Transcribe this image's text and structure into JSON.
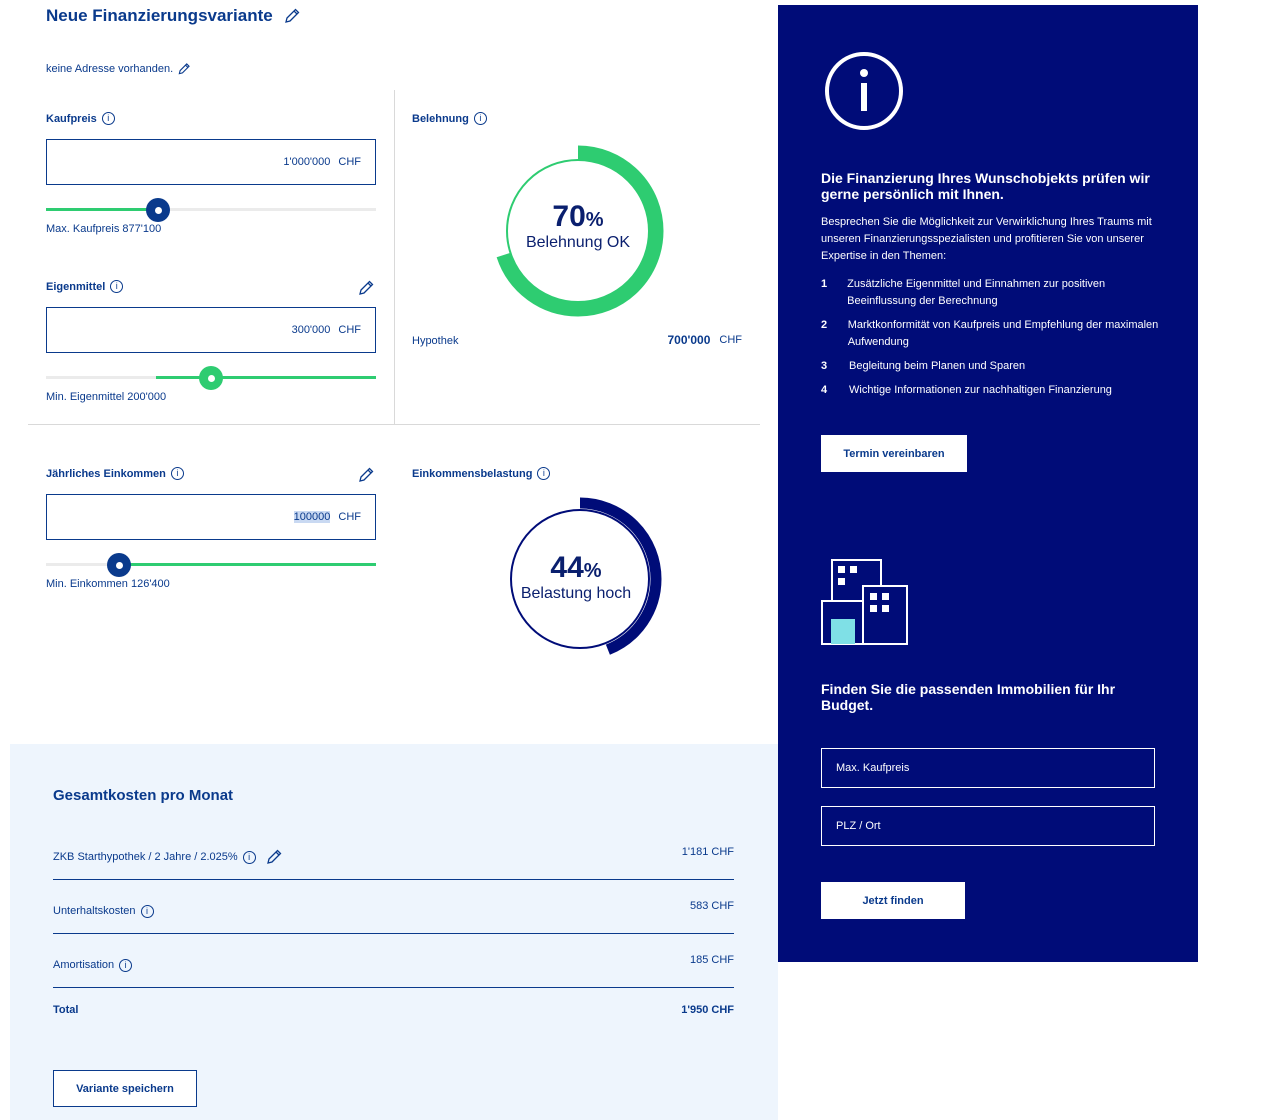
{
  "header": {
    "title": "Neue Finanzierungsvariante",
    "address": "keine Adresse vorhanden."
  },
  "kaufpreis": {
    "label": "Kaufpreis",
    "value": "1'000'000",
    "currency": "CHF",
    "hint": "Max. Kaufpreis 877'100",
    "slider_fraction": 0.34
  },
  "eigenmittel": {
    "label": "Eigenmittel",
    "value": "300'000",
    "currency": "CHF",
    "hint": "Min. Eigenmittel 200'000",
    "slider_fraction": 0.5
  },
  "einkommen": {
    "label": "Jährliches Einkommen",
    "value": "100000",
    "currency": "CHF",
    "hint": "Min. Einkommen 126'400",
    "slider_fraction": 0.22
  },
  "belehnung": {
    "label": "Belehnung",
    "percent": "70",
    "percent_sign": "%",
    "status": "Belehnung OK",
    "fraction": 0.7,
    "color": "#2ecc71",
    "hypothek_label": "Hypothek",
    "hypothek_value": "700'000",
    "hypothek_currency": "CHF"
  },
  "belastung": {
    "label": "Einkommensbelastung",
    "percent": "44",
    "percent_sign": "%",
    "status": "Belastung hoch",
    "fraction": 0.44,
    "color": "#000c78"
  },
  "costs": {
    "title": "Gesamtkosten pro Monat",
    "rows": [
      {
        "label": "ZKB Starthypothek / 2 Jahre / 2.025%",
        "value": "1'181 CHF"
      },
      {
        "label": "Unterhaltskosten",
        "value": "583 CHF"
      },
      {
        "label": "Amortisation",
        "value": "185 CHF"
      }
    ],
    "total_label": "Total",
    "total_value": "1'950 CHF",
    "save_button": "Variante speichern"
  },
  "panel": {
    "heading": "Die Finanzierung Ihres Wunschobjekts prüfen wir gerne persönlich mit Ihnen.",
    "intro": "Besprechen Sie die Möglichkeit zur Verwirklichung Ihres Traums mit unseren Finanzierungsspezialisten und profitieren Sie von unserer Expertise in den Themen:",
    "items": [
      {
        "num": "1",
        "text": "Zusätzliche Eigenmittel und Einnahmen zur positiven Beeinflussung der Berechnung"
      },
      {
        "num": "2",
        "text": "Marktkonformität von Kaufpreis und Empfehlung der maximalen Aufwendung"
      },
      {
        "num": "3",
        "text": "Begleitung beim Planen und Sparen"
      },
      {
        "num": "4",
        "text": "Wichtige Informationen zur nachhaltigen Finanzierung"
      }
    ],
    "appointment_button": "Termin vereinbaren",
    "search_heading": "Finden Sie die passenden Immobilien für Ihr Budget.",
    "max_price_placeholder": "Max. Kaufpreis",
    "location_placeholder": "PLZ / Ort",
    "find_button": "Jetzt finden"
  },
  "colors": {
    "primary": "#0a3a8c",
    "navy_panel": "#000c78",
    "green": "#2ecc71",
    "light_bg": "#eef5fd"
  }
}
